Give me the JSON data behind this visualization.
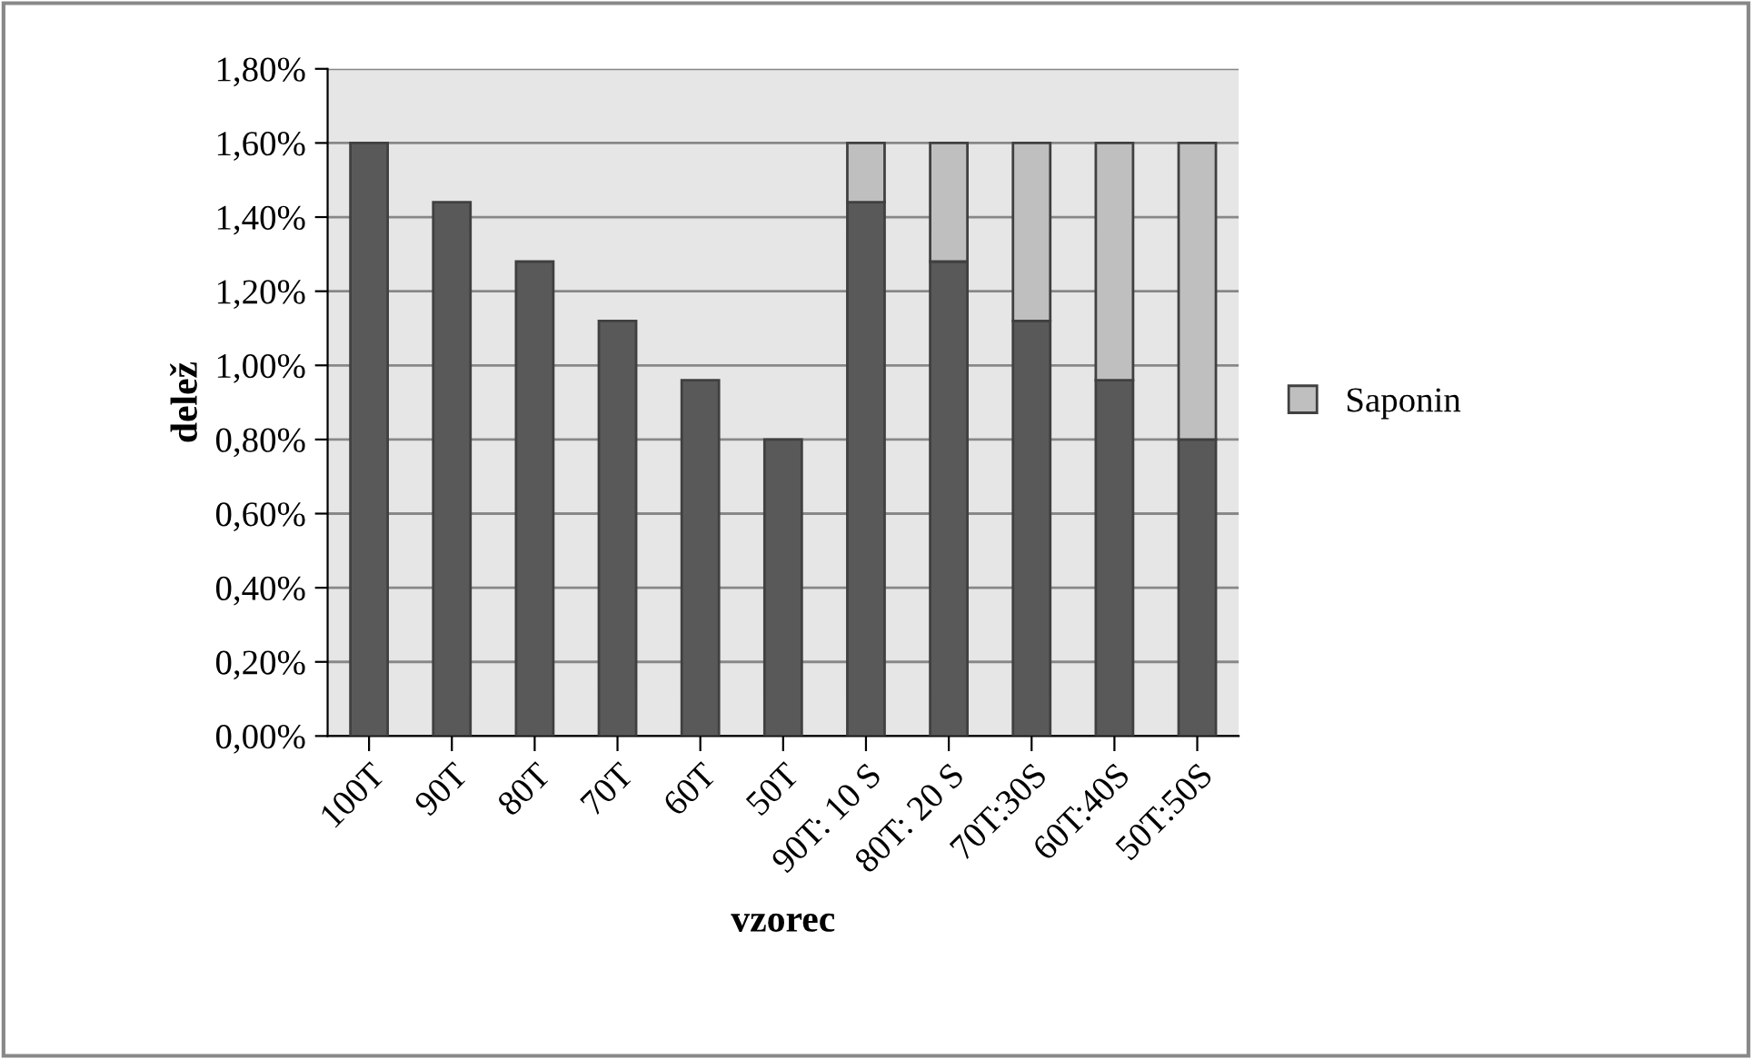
{
  "chart_data": {
    "type": "bar",
    "stacked": true,
    "xlabel": "vzorec",
    "ylabel": "delež",
    "categories": [
      "100T",
      "90T",
      "80T",
      "70T",
      "60T",
      "50T",
      "90T: 10 S",
      "80T: 20 S",
      "70T:30S",
      "60T:40S",
      "50T:50S"
    ],
    "series": [
      {
        "color": "#595959",
        "values": [
          1.6,
          1.44,
          1.28,
          1.12,
          0.96,
          0.8,
          1.44,
          1.28,
          1.12,
          0.96,
          0.8
        ]
      },
      {
        "name": "Saponin",
        "color": "#bfbfbf",
        "values": [
          null,
          null,
          null,
          null,
          null,
          null,
          0.16,
          0.32,
          0.48,
          0.64,
          0.8
        ]
      }
    ],
    "ylim": [
      0,
      1.8
    ],
    "yticks": [
      {
        "value": 0,
        "label": "0,00%"
      },
      {
        "value": 0.2,
        "label": "0,20%"
      },
      {
        "value": 0.4,
        "label": "0,40%"
      },
      {
        "value": 0.6,
        "label": "0,60%"
      },
      {
        "value": 0.8,
        "label": "0,80%"
      },
      {
        "value": 1.0,
        "label": "1,00%"
      },
      {
        "value": 1.2,
        "label": "1,20%"
      },
      {
        "value": 1.4,
        "label": "1,40%"
      },
      {
        "value": 1.6,
        "label": "1,60%"
      },
      {
        "value": 1.8,
        "label": "1,80%"
      }
    ],
    "grid": "y",
    "legend": "right"
  }
}
